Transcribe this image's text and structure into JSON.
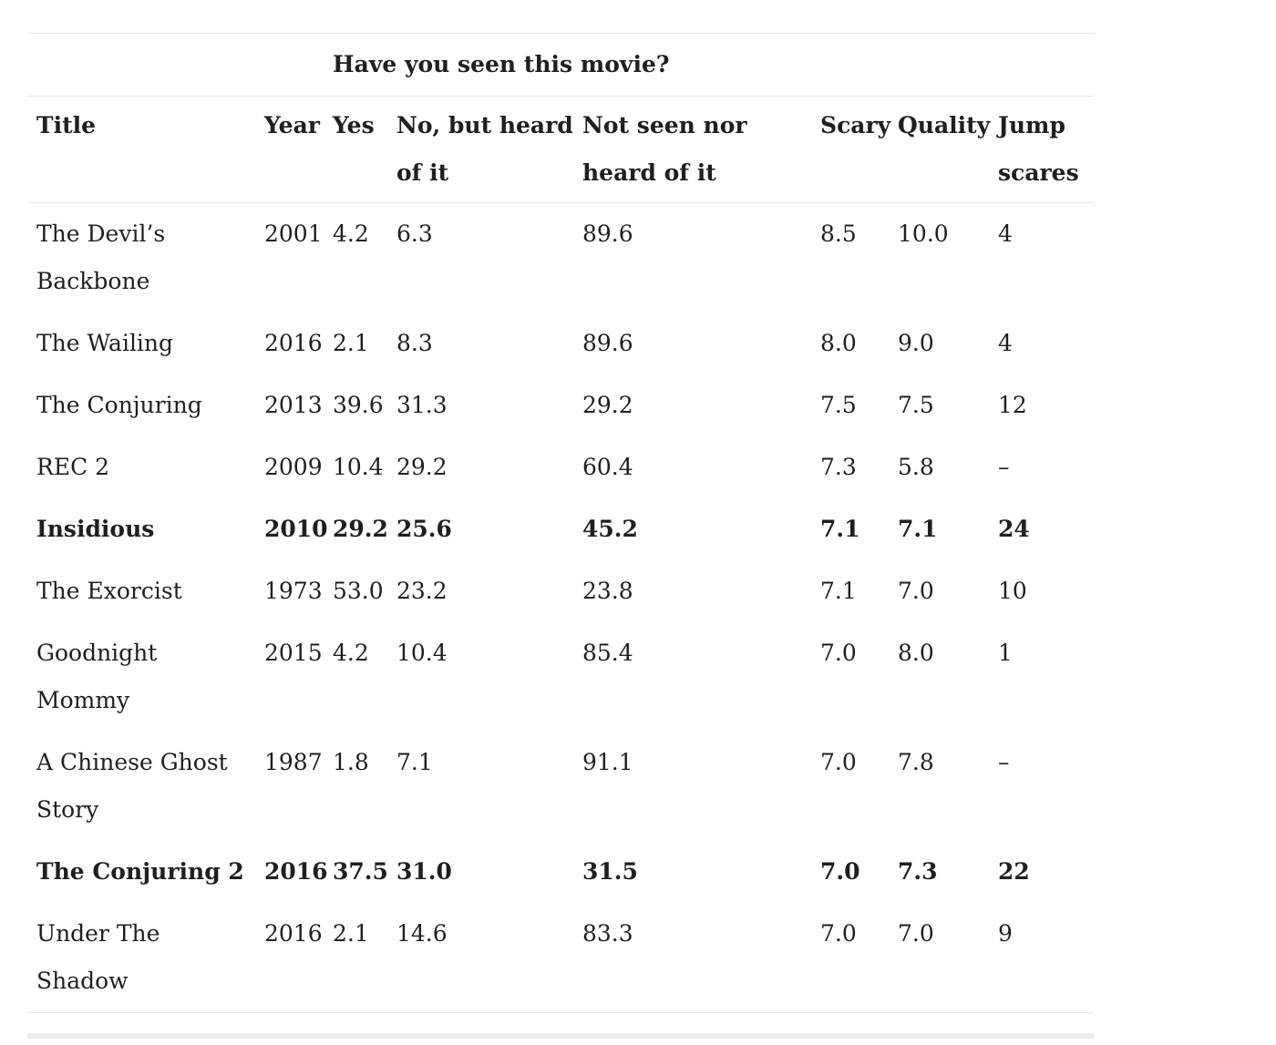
{
  "table": {
    "group_header": "Have you seen this movie?",
    "columns": [
      "Title",
      "Year",
      "Yes",
      "No, but heard of it",
      "Not seen nor heard of it",
      "Scary",
      "Quality",
      "Jump scares"
    ],
    "rows": [
      {
        "title": "The Devil’s Backbone",
        "year": "2001",
        "yes": "4.2",
        "no_heard": "6.3",
        "not_seen": "89.6",
        "scary": "8.5",
        "quality": "10.0",
        "jump": "4",
        "bold": false
      },
      {
        "title": "The Wailing",
        "year": "2016",
        "yes": "2.1",
        "no_heard": "8.3",
        "not_seen": "89.6",
        "scary": "8.0",
        "quality": "9.0",
        "jump": "4",
        "bold": false
      },
      {
        "title": "The Conjuring",
        "year": "2013",
        "yes": "39.6",
        "no_heard": "31.3",
        "not_seen": "29.2",
        "scary": "7.5",
        "quality": "7.5",
        "jump": "12",
        "bold": false
      },
      {
        "title": "REC 2",
        "year": "2009",
        "yes": "10.4",
        "no_heard": "29.2",
        "not_seen": "60.4",
        "scary": "7.3",
        "quality": "5.8",
        "jump": "–",
        "bold": false
      },
      {
        "title": "Insidious",
        "year": "2010",
        "yes": "29.2",
        "no_heard": "25.6",
        "not_seen": "45.2",
        "scary": "7.1",
        "quality": "7.1",
        "jump": "24",
        "bold": true
      },
      {
        "title": "The Exorcist",
        "year": "1973",
        "yes": "53.0",
        "no_heard": "23.2",
        "not_seen": "23.8",
        "scary": "7.1",
        "quality": "7.0",
        "jump": "10",
        "bold": false
      },
      {
        "title": "Goodnight Mommy",
        "year": "2015",
        "yes": "4.2",
        "no_heard": "10.4",
        "not_seen": "85.4",
        "scary": "7.0",
        "quality": "8.0",
        "jump": "1",
        "bold": false
      },
      {
        "title": "A Chinese Ghost Story",
        "year": "1987",
        "yes": "1.8",
        "no_heard": "7.1",
        "not_seen": "91.1",
        "scary": "7.0",
        "quality": "7.8",
        "jump": "–",
        "bold": false
      },
      {
        "title": "The Conjuring 2",
        "year": "2016",
        "yes": "37.5",
        "no_heard": "31.0",
        "not_seen": "31.5",
        "scary": "7.0",
        "quality": "7.3",
        "jump": "22",
        "bold": true
      },
      {
        "title": "Under The Shadow",
        "year": "2016",
        "yes": "2.1",
        "no_heard": "14.6",
        "not_seen": "83.3",
        "scary": "7.0",
        "quality": "7.0",
        "jump": "9",
        "bold": false
      }
    ]
  }
}
